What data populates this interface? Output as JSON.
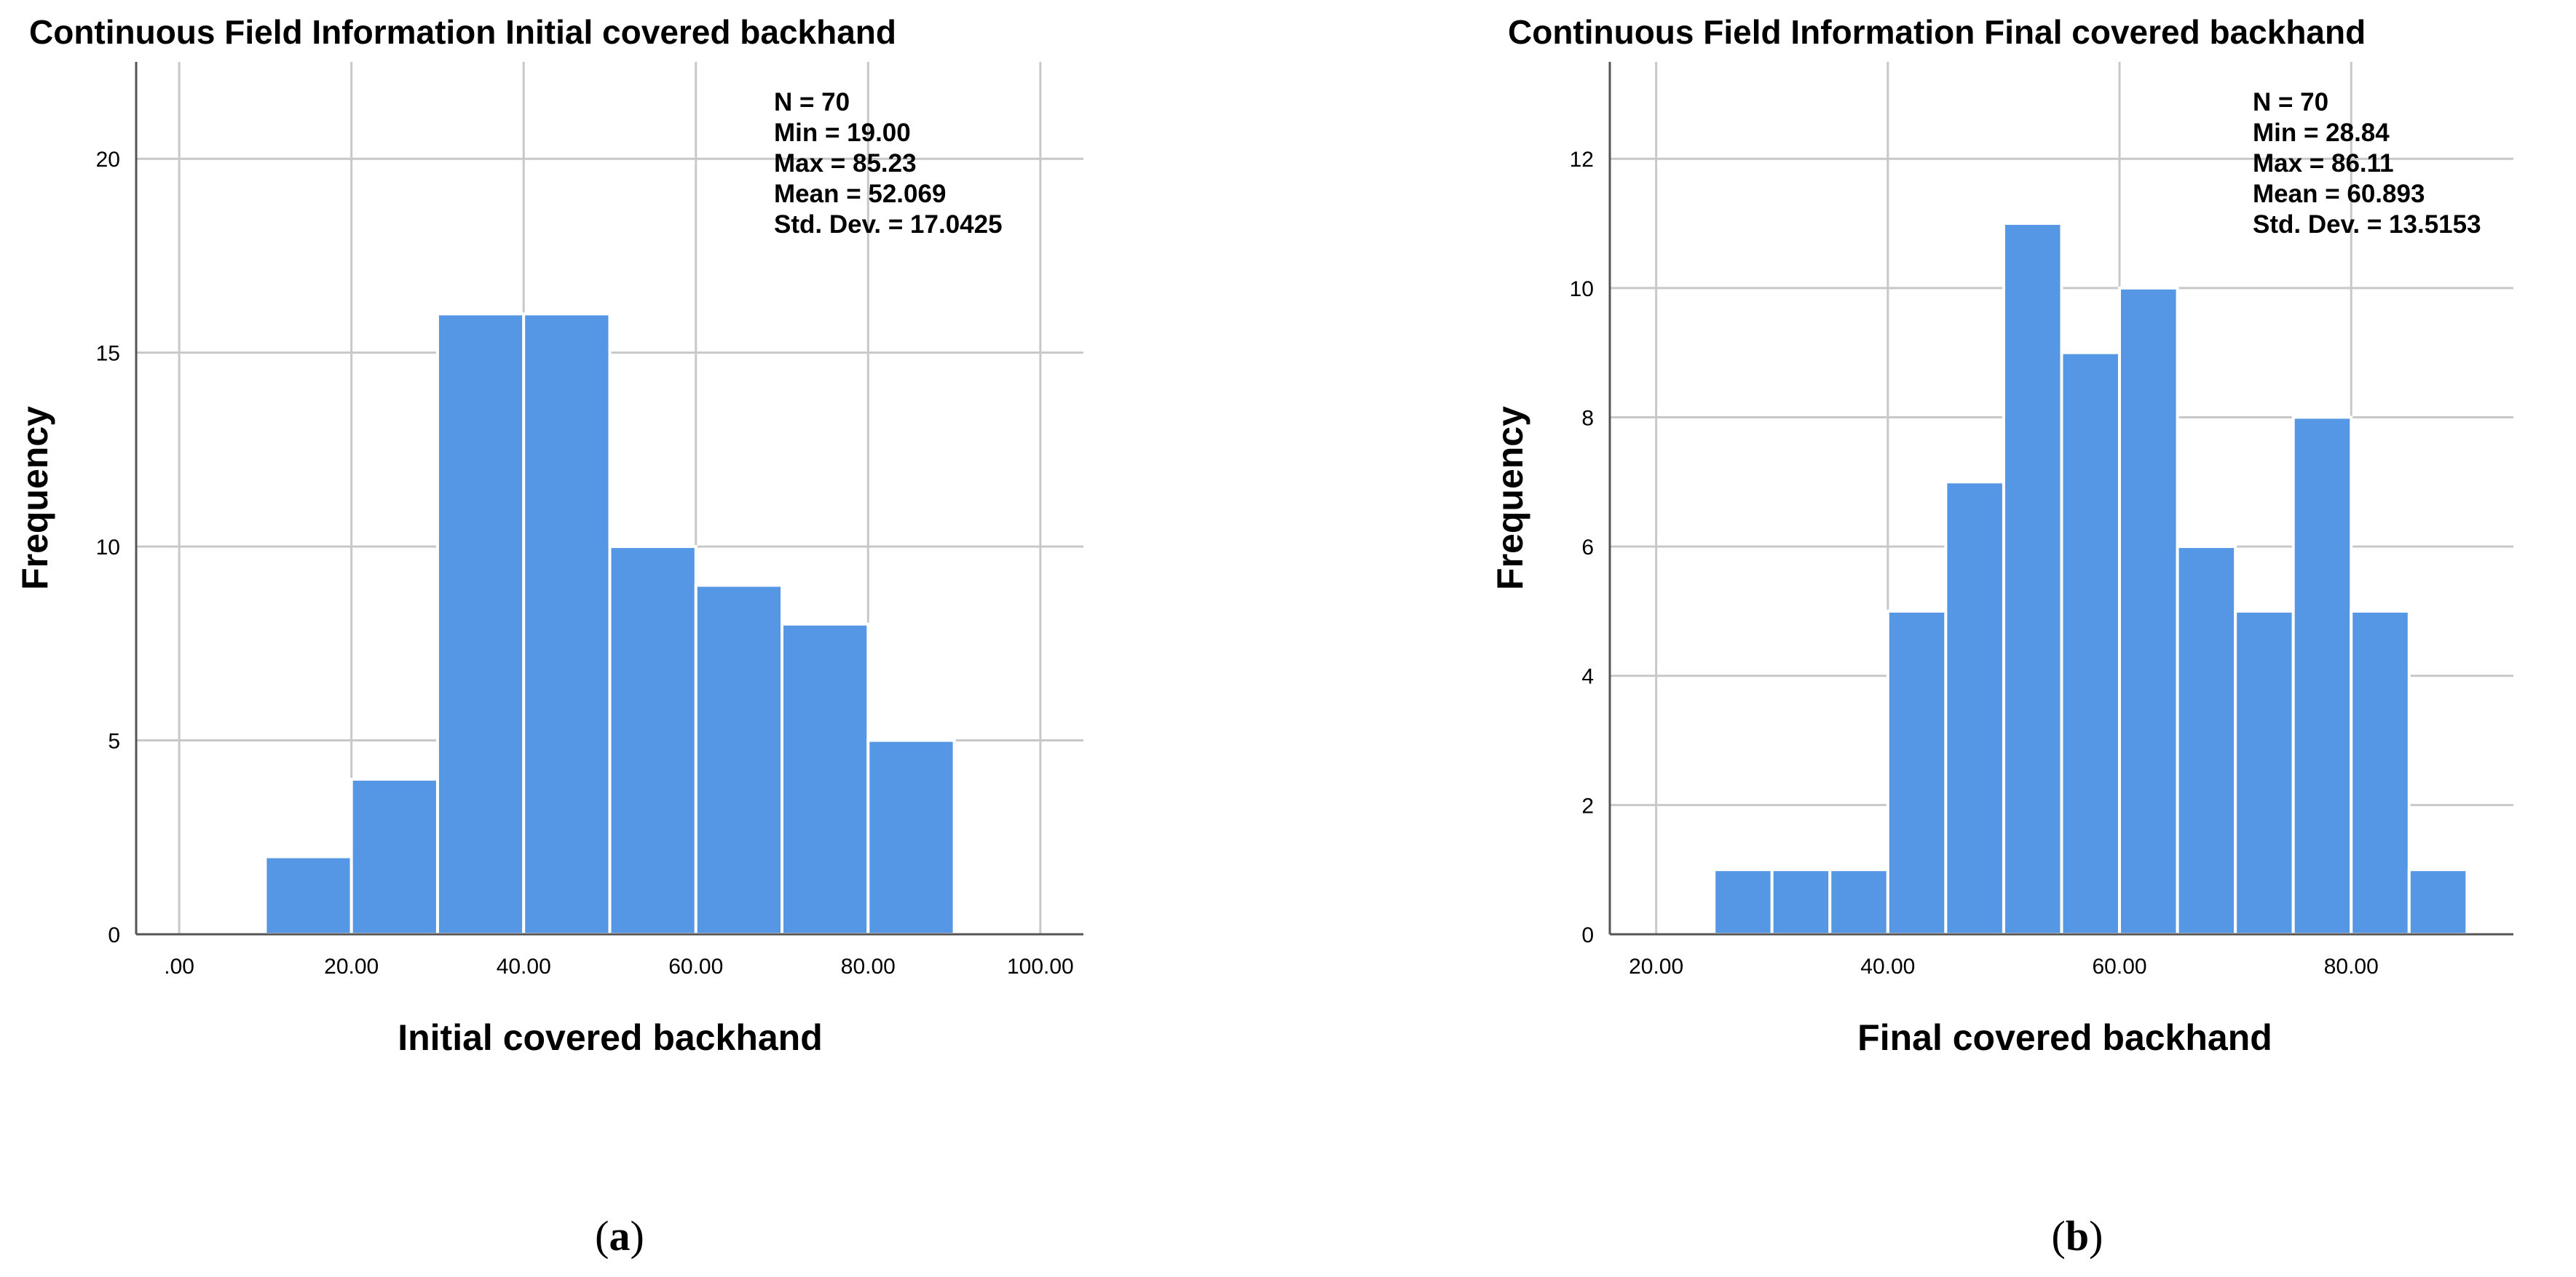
{
  "chart_data": [
    {
      "type": "bar",
      "title": "Continuous Field Information Initial covered backhand",
      "xlabel": "Initial covered backhand",
      "ylabel": "Frequency",
      "xlim": [
        -5,
        105
      ],
      "ylim": [
        0,
        22.5
      ],
      "xticks": [
        ".00",
        "20.00",
        "40.00",
        "60.00",
        "80.00",
        "100.00"
      ],
      "xtick_values": [
        0,
        20,
        40,
        60,
        80,
        100
      ],
      "yticks": [
        "0",
        "5",
        "10",
        "15",
        "20"
      ],
      "ytick_values": [
        0,
        5,
        10,
        15,
        20
      ],
      "grid": true,
      "bar_color": "#5596e5",
      "bins": [
        [
          10,
          20
        ],
        [
          20,
          30
        ],
        [
          30,
          40
        ],
        [
          40,
          50
        ],
        [
          50,
          60
        ],
        [
          60,
          70
        ],
        [
          70,
          80
        ],
        [
          80,
          90
        ]
      ],
      "values": [
        2,
        4,
        16,
        16,
        10,
        9,
        8,
        5
      ],
      "stats": [
        "N = 70",
        "Min = 19.00",
        "Max = 85.23",
        "Mean = 52.069",
        "Std. Dev. = 17.0425"
      ],
      "caption_open": "(",
      "caption_letter": "a",
      "caption_close": ")"
    },
    {
      "type": "bar",
      "title": "Continuous Field Information Final covered backhand",
      "xlabel": "Final covered backhand",
      "ylabel": "Frequency",
      "xlim": [
        16,
        94
      ],
      "ylim": [
        0,
        13.5
      ],
      "xticks": [
        "20.00",
        "40.00",
        "60.00",
        "80.00"
      ],
      "xtick_values": [
        20,
        40,
        60,
        80
      ],
      "yticks": [
        "0",
        "2",
        "4",
        "6",
        "8",
        "10",
        "12"
      ],
      "ytick_values": [
        0,
        2,
        4,
        6,
        8,
        10,
        12
      ],
      "grid": true,
      "bar_color": "#5596e5",
      "bins": [
        [
          25,
          30
        ],
        [
          30,
          35
        ],
        [
          35,
          40
        ],
        [
          40,
          45
        ],
        [
          45,
          50
        ],
        [
          50,
          55
        ],
        [
          55,
          60
        ],
        [
          60,
          65
        ],
        [
          65,
          70
        ],
        [
          70,
          75
        ],
        [
          75,
          80
        ],
        [
          80,
          85
        ],
        [
          85,
          90
        ]
      ],
      "values": [
        1,
        1,
        1,
        5,
        7,
        11,
        9,
        10,
        6,
        5,
        8,
        5,
        1
      ],
      "stats": [
        "N = 70",
        "Min = 28.84",
        "Max = 86.11",
        "Mean = 60.893",
        "Std. Dev. = 13.5153"
      ],
      "caption_open": "(",
      "caption_letter": "b",
      "caption_close": ")"
    }
  ]
}
